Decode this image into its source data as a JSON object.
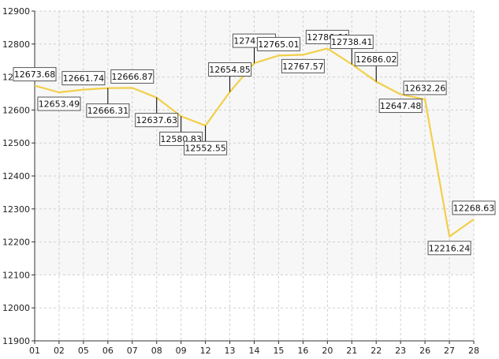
{
  "chart_data": {
    "type": "line",
    "categories": [
      "01",
      "02",
      "05",
      "06",
      "07",
      "08",
      "09",
      "12",
      "13",
      "14",
      "15",
      "16",
      "20",
      "21",
      "22",
      "23",
      "26",
      "27",
      "28"
    ],
    "series": [
      {
        "values": [
          12673.68,
          12653.49,
          12661.74,
          12666.31,
          12666.87,
          12637.63,
          12580.83,
          12552.55,
          12654.85,
          12741.86,
          12765.01,
          12767.57,
          12786.64,
          12738.41,
          12686.02,
          12647.48,
          12632.26,
          12216.24,
          12268.63
        ],
        "labels": [
          "12673.68",
          "12653.49",
          "12661.74",
          "12666.31",
          "12666.87",
          "12637.63",
          "12580.83",
          "12552.55",
          "12654.85",
          "12741.86",
          "12765.01",
          "12767.57",
          "12786.64",
          "12738.41",
          "12686.02",
          "12647.48",
          "12632.26",
          "12216.24",
          "12268.63"
        ],
        "color": "#f2cf4a"
      }
    ],
    "title": "",
    "xlabel": "",
    "ylabel": "",
    "ylim": [
      11900,
      12900
    ],
    "yticks": [
      "11900",
      "12000",
      "12100",
      "12200",
      "12300",
      "12400",
      "12500",
      "12600",
      "12700",
      "12800",
      "12900"
    ],
    "grid": true,
    "plot_band_color": "#f7f7f7",
    "label_placement": [
      "up",
      "down",
      "up",
      "down",
      "up",
      "down",
      "down",
      "down",
      "up",
      "up",
      "up",
      "down",
      "up",
      "up",
      "up",
      "down",
      "up",
      "down",
      "up"
    ],
    "label_leader": [
      0,
      0,
      0,
      1,
      0,
      1,
      1,
      1,
      1,
      1,
      0,
      0,
      0,
      1,
      1,
      0,
      0,
      0,
      0
    ]
  }
}
